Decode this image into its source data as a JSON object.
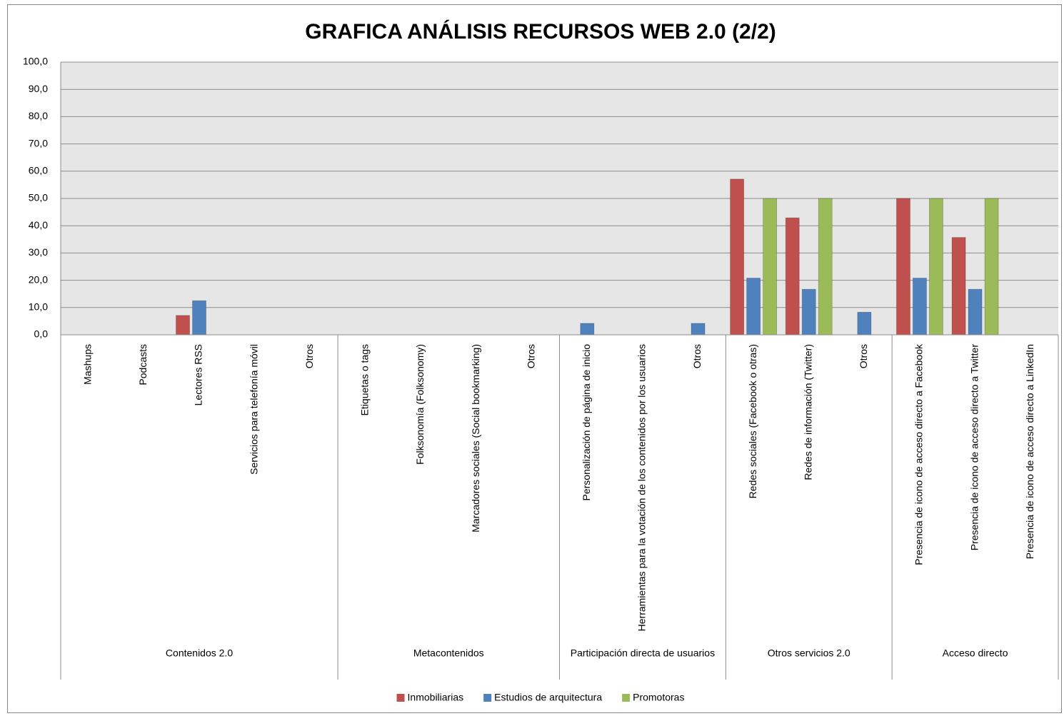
{
  "chart_data": {
    "type": "bar",
    "title": "GRAFICA ANÁLISIS RECURSOS WEB 2.0 (2/2)",
    "groups": [
      {
        "name": "Contenidos 2.0",
        "categories": [
          "Mashups",
          "Podcasts",
          "Lectores RSS",
          "Servicios para telefonía móvil",
          "Otros"
        ]
      },
      {
        "name": "Metacontenidos",
        "categories": [
          "Etiquetas o tags",
          "Folksonomía (Folksonomy)",
          "Marcadores sociales (Social bookmarking)",
          "Otros"
        ]
      },
      {
        "name": "Participación directa de usuarios",
        "categories": [
          "Personalización de página de inicio",
          "Herramientas para la votación de los contenidos por los usuarios",
          "Otros"
        ]
      },
      {
        "name": "Otros servicios 2.0",
        "categories": [
          "Redes sociales (Facebook o otras)",
          "Redes de información (Twitter)",
          "Otros"
        ]
      },
      {
        "name": "Acceso directo",
        "categories": [
          "Presencia de icono de acceso directo a Facebook",
          "Presencia de icono de acceso directo a Twitter",
          "Presencia de icono de acceso directo a LinkedIn"
        ]
      }
    ],
    "series": [
      {
        "name": "Inmobiliarias",
        "color": "#c0504d",
        "values": [
          0,
          0,
          7.1,
          0,
          0,
          0,
          0,
          0,
          0,
          0,
          0,
          0,
          57.1,
          42.9,
          0,
          50.0,
          35.7,
          0
        ]
      },
      {
        "name": "Estudios de arquitectura",
        "color": "#4f81bd",
        "values": [
          0,
          0,
          12.5,
          0,
          0,
          0,
          0,
          0,
          0,
          4.2,
          0,
          4.2,
          20.8,
          16.7,
          8.3,
          20.8,
          16.7,
          0
        ]
      },
      {
        "name": "Promotoras",
        "color": "#9bbb59",
        "values": [
          0,
          0,
          0,
          0,
          0,
          0,
          0,
          0,
          0,
          0,
          0,
          0,
          50.0,
          50.0,
          0,
          50.0,
          50.0,
          0
        ]
      }
    ],
    "ylim": [
      0,
      100
    ],
    "yticks": [
      {
        "value": 0,
        "label": "0,0"
      },
      {
        "value": 10,
        "label": "10,0"
      },
      {
        "value": 20,
        "label": "20,0"
      },
      {
        "value": 30,
        "label": "30,0"
      },
      {
        "value": 40,
        "label": "40,0"
      },
      {
        "value": 50,
        "label": "50,0"
      },
      {
        "value": 60,
        "label": "60,0"
      },
      {
        "value": 70,
        "label": "70,0"
      },
      {
        "value": 80,
        "label": "80,0"
      },
      {
        "value": 90,
        "label": "90,0"
      },
      {
        "value": 100,
        "label": "100,0"
      }
    ],
    "grid": true,
    "legend": "bottom"
  }
}
